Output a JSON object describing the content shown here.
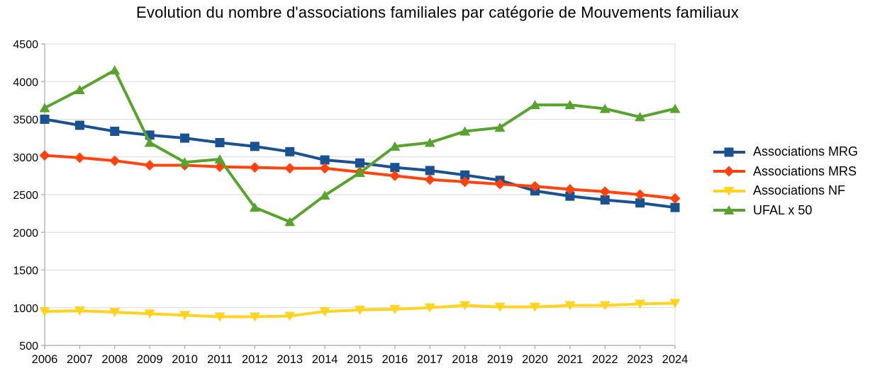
{
  "title": "Evolution du nombre d'associations familiales par catégorie de Mouvements familiaux",
  "chart_data": {
    "type": "line",
    "x": [
      2006,
      2007,
      2008,
      2009,
      2010,
      2011,
      2012,
      2013,
      2014,
      2015,
      2016,
      2017,
      2018,
      2019,
      2020,
      2021,
      2022,
      2023,
      2024
    ],
    "series": [
      {
        "name": "Associations MRG",
        "marker": "square",
        "color": "#1A5291",
        "values": [
          3500,
          3420,
          3340,
          3290,
          3250,
          3190,
          3140,
          3070,
          2960,
          2920,
          2860,
          2820,
          2760,
          2690,
          2550,
          2480,
          2430,
          2390,
          2330
        ]
      },
      {
        "name": "Associations MRS",
        "marker": "diamond",
        "color": "#FF420E",
        "values": [
          3020,
          2990,
          2950,
          2890,
          2890,
          2870,
          2860,
          2850,
          2850,
          2800,
          2750,
          2700,
          2670,
          2640,
          2610,
          2570,
          2540,
          2500,
          2450
        ]
      },
      {
        "name": "Associations NF",
        "marker": "triangle-down",
        "color": "#FFD320",
        "values": [
          950,
          960,
          940,
          920,
          900,
          880,
          880,
          890,
          950,
          970,
          980,
          1000,
          1030,
          1010,
          1010,
          1030,
          1030,
          1050,
          1060
        ]
      },
      {
        "name": "UFAL x 50",
        "marker": "triangle-up",
        "color": "#57A32D",
        "values": [
          3650,
          3890,
          4150,
          3190,
          2930,
          2970,
          2330,
          2140,
          2490,
          2790,
          3140,
          3190,
          3340,
          3390,
          3690,
          3690,
          3640,
          3530,
          3640
        ]
      }
    ],
    "ylim": [
      500,
      4500
    ],
    "ytick_step": 500,
    "yticks": [
      500,
      1000,
      1500,
      2000,
      2500,
      3000,
      3500,
      4000,
      4500
    ],
    "grid": "horizontal",
    "legend_position": "right",
    "grid_color": "#D9D9D9",
    "axis_color": "#B3B3B3",
    "text_color": "#000000"
  }
}
